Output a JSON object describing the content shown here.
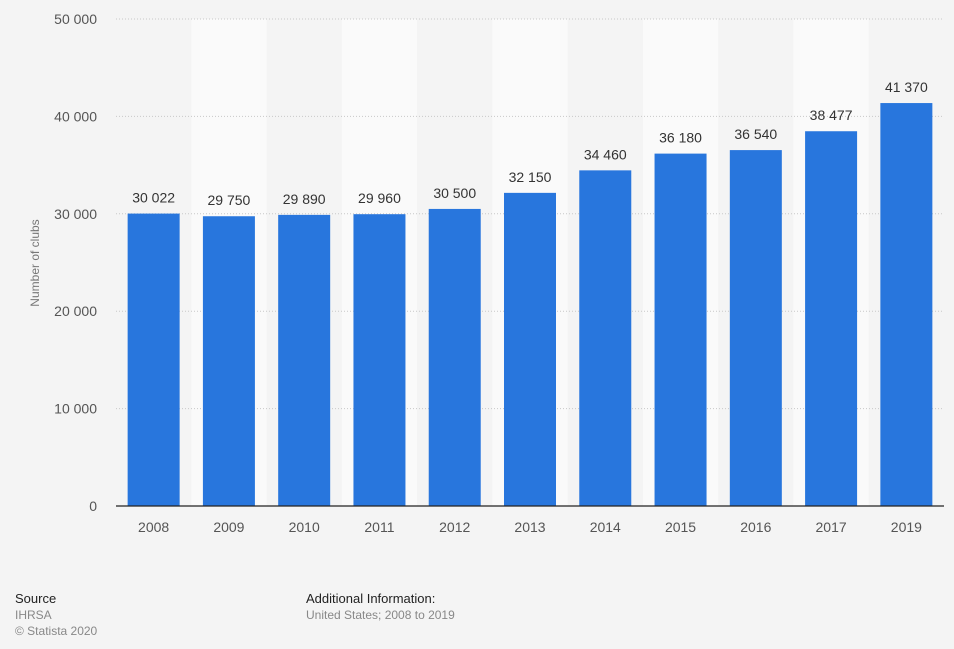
{
  "chart_data": {
    "type": "bar",
    "title": "",
    "xlabel": "",
    "ylabel": "Number of clubs",
    "ylim": [
      0,
      50000
    ],
    "yticks": [
      0,
      10000,
      20000,
      30000,
      40000,
      50000
    ],
    "ytick_labels": [
      "0",
      "10 000",
      "20 000",
      "30 000",
      "40 000",
      "50 000"
    ],
    "categories": [
      "2008",
      "2009",
      "2010",
      "2011",
      "2012",
      "2013",
      "2014",
      "2015",
      "2016",
      "2017",
      "2019"
    ],
    "values": [
      30022,
      29750,
      29890,
      29960,
      30500,
      32150,
      34460,
      36180,
      36540,
      38477,
      41370
    ],
    "data_labels": [
      "30 022",
      "29 750",
      "29 890",
      "29 960",
      "30 500",
      "32 150",
      "34 460",
      "36 180",
      "36 540",
      "38 477",
      "41 370"
    ],
    "grid": true,
    "bar_color": "#2876dd"
  },
  "footer": {
    "source_heading": "Source",
    "source": "IHRSA",
    "copyright": "© Statista 2020",
    "info_heading": "Additional Information:",
    "info": "United States; 2008 to 2019"
  }
}
